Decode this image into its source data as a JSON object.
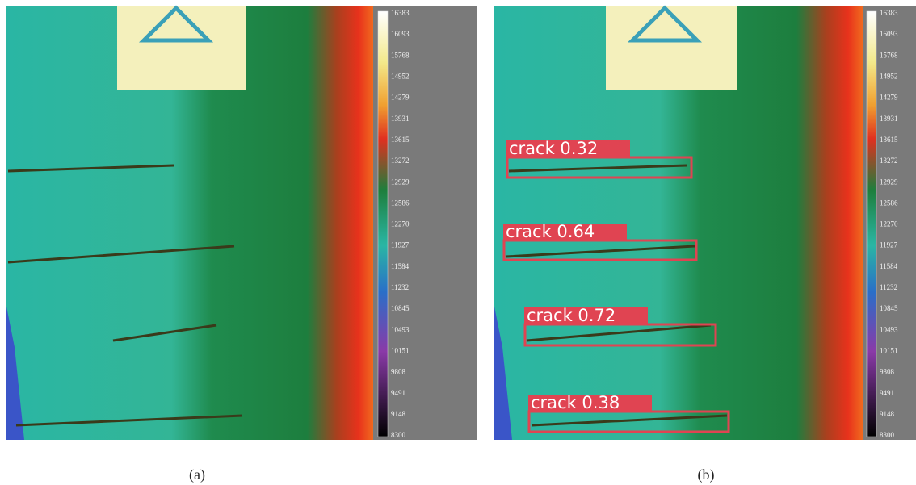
{
  "panels": [
    {
      "caption": "(a)",
      "colorbar_labels": [
        "16383",
        "16093",
        "15768",
        "14952",
        "14279",
        "13931",
        "13615",
        "13272",
        "12929",
        "12586",
        "12270",
        "11927",
        "11584",
        "11232",
        "10845",
        "10493",
        "10151",
        "9808",
        "9491",
        "9148",
        "8300"
      ]
    },
    {
      "caption": "(b)",
      "colorbar_labels": [
        "16383",
        "16093",
        "15768",
        "14952",
        "14279",
        "13931",
        "13615",
        "13272",
        "12929",
        "12586",
        "12270",
        "11927",
        "11584",
        "11232",
        "10845",
        "10493",
        "10151",
        "9808",
        "9491",
        "9148",
        "8300"
      ],
      "detections": [
        "crack 0.32",
        "crack 0.64",
        "crack 0.72",
        "crack 0.38"
      ]
    }
  ]
}
